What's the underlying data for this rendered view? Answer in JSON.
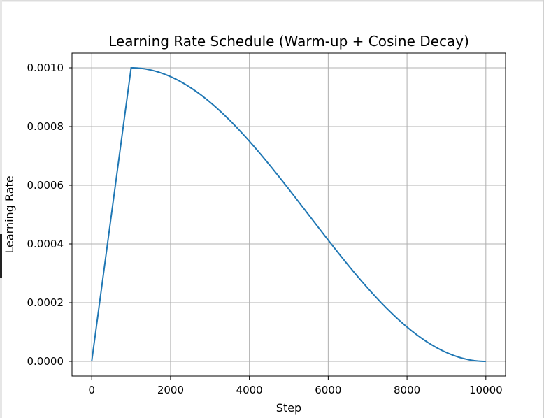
{
  "chart_data": {
    "type": "line",
    "title": "Learning Rate Schedule (Warm-up + Cosine Decay)",
    "xlabel": "Step",
    "ylabel": "Learning Rate",
    "xlim": [
      -500,
      10500
    ],
    "ylim": [
      -5e-05,
      0.00105
    ],
    "x_ticks": [
      0,
      2000,
      4000,
      6000,
      8000,
      10000
    ],
    "x_tick_labels": [
      "0",
      "2000",
      "4000",
      "6000",
      "8000",
      "10000"
    ],
    "y_ticks": [
      0,
      0.0002,
      0.0004,
      0.0006,
      0.0008,
      0.001
    ],
    "y_tick_labels": [
      "0.0000",
      "0.0002",
      "0.0004",
      "0.0006",
      "0.0008",
      "0.0010"
    ],
    "grid": true,
    "series": [
      {
        "color": "#1f77b4",
        "schedule": {
          "warmup_steps": 1000,
          "total_steps": 10000,
          "peak_lr": 0.001
        },
        "x": [
          0,
          1000,
          2000,
          3000,
          4000,
          5000,
          6000,
          7000,
          8000,
          9000,
          10000
        ],
        "y": [
          0.0,
          0.001,
          0.00097,
          0.00088,
          0.00075,
          0.00059,
          0.00041,
          0.00025,
          0.00012,
          3e-05,
          0.0
        ]
      }
    ]
  }
}
